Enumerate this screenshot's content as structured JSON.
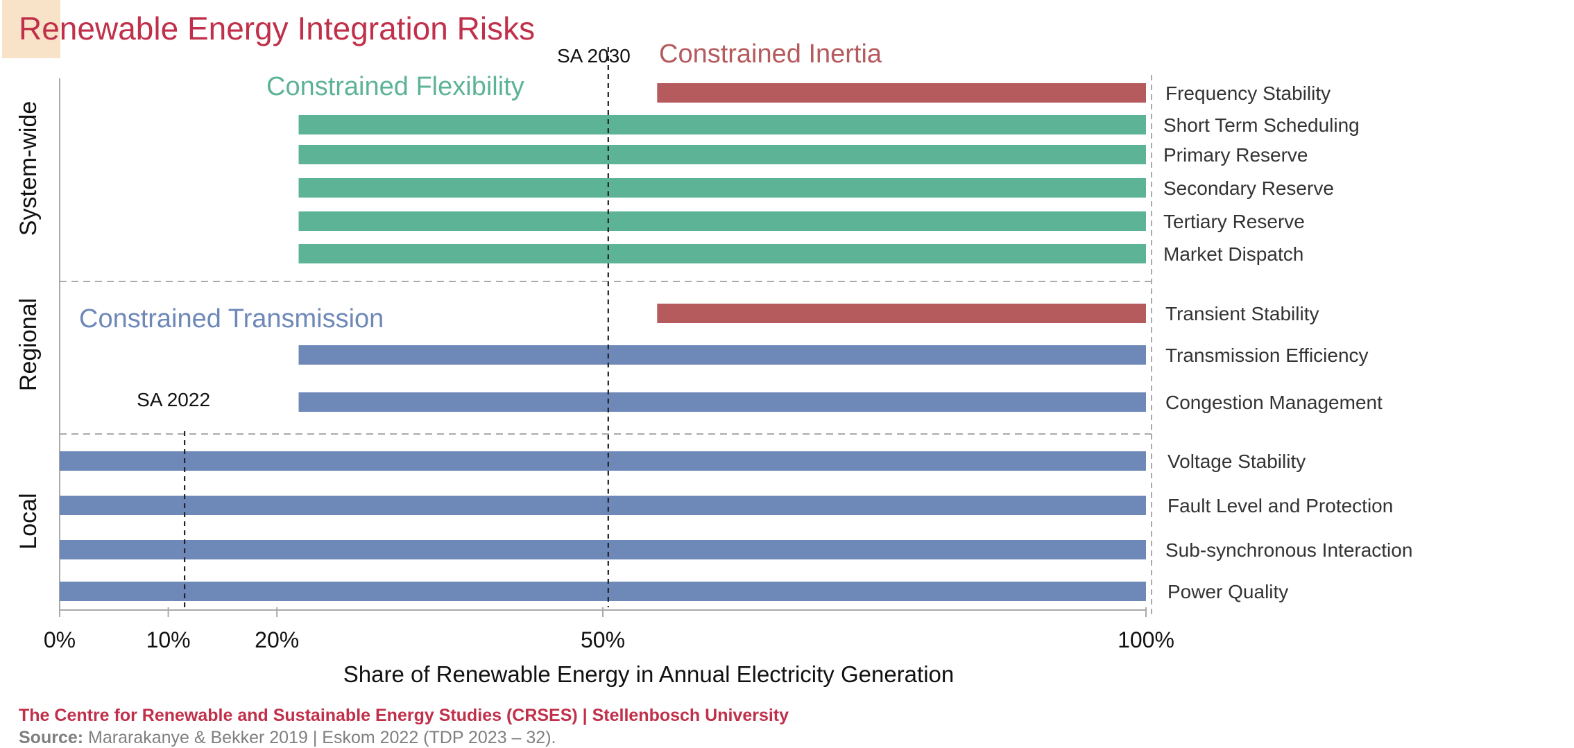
{
  "title": "Renewable Energy Integration Risks",
  "colors": {
    "title": "#c0304a",
    "title_swatch": "#f8e3c8",
    "inertia": "#b55a5d",
    "flexibility": "#5db396",
    "transmission": "#6e88b8",
    "axis_text": "#111111",
    "row_label": "#333333",
    "divider": "#aaaaaa",
    "footer_org": "#c0304a",
    "footer_source": "#7f7f7f"
  },
  "footer": {
    "org": "The Centre for Renewable and Sustainable Energy Studies (CRSES) | Stellenbosch University",
    "source_label": "Source:",
    "source_text": "Mararakanye & Bekker 2019 | Eskom 2022 (TDP 2023 – 32)."
  },
  "chart_data": {
    "type": "bar",
    "orientation": "horizontal-range",
    "xlabel": "Share of Renewable Energy in Annual Electricity Generation",
    "x_ticks": [
      {
        "value": 0,
        "label": "0%"
      },
      {
        "value": 10,
        "label": "10%"
      },
      {
        "value": 20,
        "label": "20%"
      },
      {
        "value": 50,
        "label": "50%"
      },
      {
        "value": 100,
        "label": "100%"
      }
    ],
    "xlim": [
      0,
      100
    ],
    "groups": [
      {
        "name": "System-wide"
      },
      {
        "name": "Regional"
      },
      {
        "name": "Local"
      }
    ],
    "categories": [
      {
        "label": "Frequency Stability",
        "group": "System-wide",
        "start": 55,
        "end": 100,
        "risk": "Constrained Inertia"
      },
      {
        "label": "Short Term Scheduling",
        "group": "System-wide",
        "start": 22,
        "end": 100,
        "risk": "Constrained Flexibility"
      },
      {
        "label": "Primary Reserve",
        "group": "System-wide",
        "start": 22,
        "end": 100,
        "risk": "Constrained Flexibility"
      },
      {
        "label": "Secondary Reserve",
        "group": "System-wide",
        "start": 22,
        "end": 100,
        "risk": "Constrained Flexibility"
      },
      {
        "label": "Tertiary Reserve",
        "group": "System-wide",
        "start": 22,
        "end": 100,
        "risk": "Constrained Flexibility"
      },
      {
        "label": "Market Dispatch",
        "group": "System-wide",
        "start": 22,
        "end": 100,
        "risk": "Constrained Flexibility"
      },
      {
        "label": "Transient Stability",
        "group": "Regional",
        "start": 55,
        "end": 100,
        "risk": "Constrained Inertia"
      },
      {
        "label": "Transmission Efficiency",
        "group": "Regional",
        "start": 22,
        "end": 100,
        "risk": "Constrained Transmission"
      },
      {
        "label": "Congestion Management",
        "group": "Regional",
        "start": 22,
        "end": 100,
        "risk": "Constrained Transmission"
      },
      {
        "label": "Voltage Stability",
        "group": "Local",
        "start": 0,
        "end": 100,
        "risk": "Constrained Transmission"
      },
      {
        "label": "Fault Level and Protection",
        "group": "Local",
        "start": 0,
        "end": 100,
        "risk": "Constrained Transmission"
      },
      {
        "label": "Sub-synchronous Interaction",
        "group": "Local",
        "start": 0,
        "end": 100,
        "risk": "Constrained Transmission"
      },
      {
        "label": "Power Quality",
        "group": "Local",
        "start": 0,
        "end": 100,
        "risk": "Constrained Transmission"
      }
    ],
    "risk_labels": [
      {
        "name": "Constrained Inertia",
        "color_key": "inertia"
      },
      {
        "name": "Constrained Flexibility",
        "color_key": "flexibility"
      },
      {
        "name": "Constrained Transmission",
        "color_key": "transmission"
      }
    ],
    "reference_lines": [
      {
        "label": "SA 2030",
        "value": 50.5
      },
      {
        "label": "SA 2022",
        "value": 11.5
      }
    ]
  }
}
